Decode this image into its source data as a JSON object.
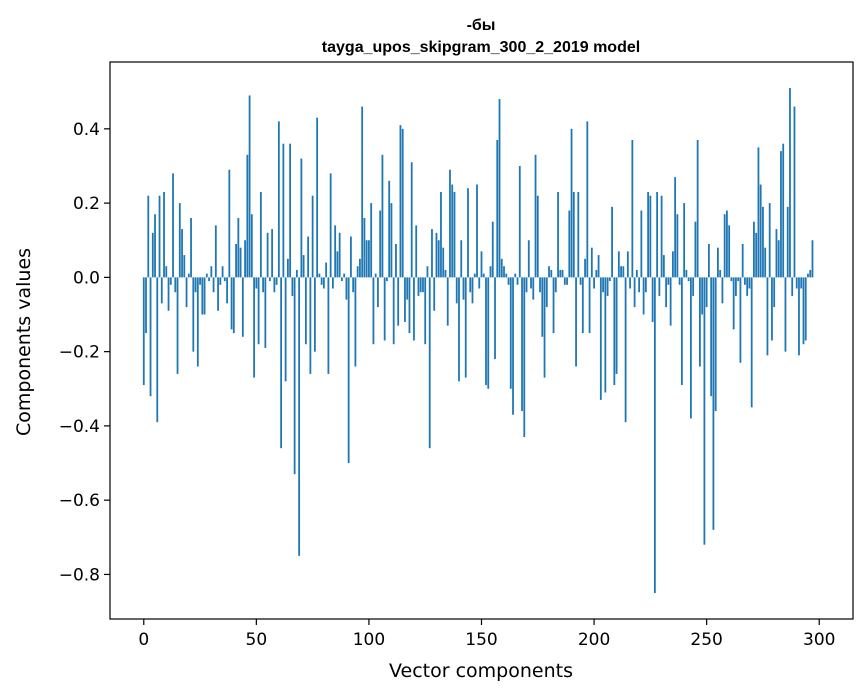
{
  "chart_data": {
    "type": "bar",
    "title_line1": "-бы",
    "title_line2": "tayga_upos_skipgram_300_2_2019 model",
    "xlabel": "Vector components",
    "ylabel": "Components values",
    "xlim": [
      -15,
      315
    ],
    "ylim": [
      -0.92,
      0.58
    ],
    "xticks": [
      0,
      50,
      100,
      150,
      200,
      250,
      300
    ],
    "xtick_labels": [
      "0",
      "50",
      "100",
      "150",
      "200",
      "250",
      "300"
    ],
    "yticks": [
      -0.8,
      -0.6,
      -0.4,
      -0.2,
      0.0,
      0.2,
      0.4
    ],
    "ytick_labels": [
      "−0.8",
      "−0.6",
      "−0.4",
      "−0.2",
      "0.0",
      "0.2",
      "0.4"
    ],
    "bar_color": "#1f77b4",
    "x_start": 0,
    "values": [
      -0.29,
      -0.15,
      0.22,
      -0.32,
      0.12,
      0.17,
      -0.39,
      0.22,
      -0.07,
      0.23,
      0.03,
      -0.09,
      -0.02,
      0.28,
      -0.04,
      -0.26,
      0.2,
      0.13,
      0.06,
      -0.08,
      0.01,
      0.16,
      -0.2,
      -0.04,
      -0.24,
      -0.02,
      -0.1,
      -0.1,
      0.01,
      -0.01,
      0.03,
      -0.04,
      0.14,
      -0.09,
      -0.02,
      0.03,
      -0.01,
      -0.07,
      0.29,
      -0.14,
      -0.15,
      0.09,
      0.16,
      0.08,
      -0.16,
      0.1,
      0.33,
      0.49,
      0.17,
      -0.27,
      -0.03,
      -0.18,
      0.23,
      -0.04,
      -0.19,
      0.12,
      -0.01,
      0.13,
      -0.04,
      -0.02,
      0.42,
      -0.46,
      0.36,
      -0.28,
      0.05,
      0.36,
      -0.05,
      -0.53,
      0.02,
      -0.75,
      0.32,
      0.06,
      -0.18,
      0.11,
      -0.26,
      0.22,
      -0.2,
      0.43,
      0.01,
      -0.02,
      -0.03,
      0.04,
      -0.26,
      0.28,
      -0.03,
      0.14,
      0.07,
      0.12,
      -0.01,
      0.01,
      -0.06,
      -0.5,
      0.11,
      -0.04,
      -0.24,
      0.03,
      0.05,
      0.46,
      0.16,
      0.1,
      0.1,
      0.2,
      -0.18,
      0.01,
      -0.08,
      0.18,
      0.33,
      -0.17,
      -0.01,
      0.26,
      0.2,
      -0.18,
      0.09,
      -0.13,
      0.41,
      0.4,
      -0.12,
      -0.06,
      -0.15,
      0.31,
      -0.17,
      0.14,
      -0.05,
      -0.04,
      -0.04,
      -0.18,
      0.03,
      -0.46,
      0.13,
      -0.09,
      0.12,
      0.1,
      0.23,
      0.08,
      0.02,
      -0.13,
      0.29,
      0.25,
      0.23,
      -0.07,
      -0.28,
      0.1,
      -0.06,
      -0.27,
      0.24,
      -0.04,
      -0.07,
      0.01,
      0.25,
      -0.03,
      0.07,
      0.01,
      -0.29,
      -0.3,
      0.03,
      0.15,
      -0.22,
      0.37,
      0.48,
      0.05,
      0.03,
      0.01,
      -0.02,
      -0.3,
      -0.37,
      0.01,
      -0.02,
      0.3,
      -0.36,
      -0.43,
      -0.04,
      0.1,
      -0.03,
      -0.06,
      0.33,
      0.22,
      -0.04,
      -0.16,
      -0.27,
      -0.08,
      0.03,
      0.02,
      -0.15,
      -0.04,
      0.23,
      0.02,
      0.02,
      -0.02,
      -0.02,
      0.18,
      0.4,
      0.23,
      -0.24,
      0.23,
      -0.02,
      -0.15,
      0.05,
      0.42,
      -0.15,
      0.08,
      -0.03,
      0.02,
      0.06,
      -0.33,
      -0.04,
      -0.31,
      -0.05,
      -0.01,
      0.19,
      -0.29,
      -0.26,
      0.07,
      0.03,
      0.03,
      -0.39,
      0.07,
      -0.03,
      0.37,
      -0.08,
      0.02,
      -0.04,
      0.18,
      -0.1,
      -0.04,
      0.23,
      0.22,
      -0.12,
      -0.85,
      0.23,
      -0.05,
      0.22,
      0.06,
      -0.08,
      -0.02,
      -0.13,
      0.07,
      0.27,
      0.17,
      -0.02,
      -0.29,
      0.2,
      0.02,
      -0.01,
      -0.38,
      -0.05,
      0.15,
      0.37,
      -0.24,
      -0.1,
      -0.72,
      -0.08,
      0.09,
      -0.32,
      -0.68,
      -0.36,
      0.08,
      0.02,
      -0.07,
      0.17,
      0.18,
      0.14,
      -0.01,
      -0.14,
      -0.05,
      -0.01,
      -0.23,
      0.09,
      -0.02,
      -0.05,
      -0.03,
      -0.35,
      0.15,
      0.12,
      0.35,
      0.25,
      0.19,
      0.08,
      -0.21,
      0.2,
      -0.17,
      -0.08,
      0.13,
      0.1,
      0.34,
      0.36,
      -0.2,
      0.19,
      0.51,
      -0.05,
      0.46,
      -0.03,
      -0.21,
      -0.03,
      -0.18,
      -0.17,
      0.01,
      0.02,
      0.1
    ]
  }
}
